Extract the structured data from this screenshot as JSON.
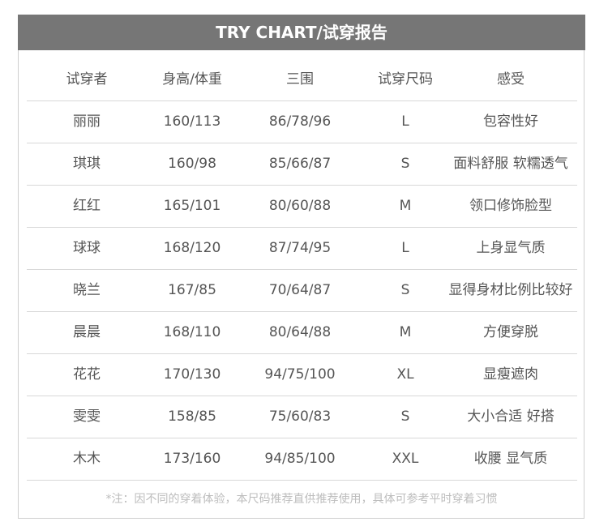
{
  "title": "TRY CHART/试穿报告",
  "columns": [
    "试穿者",
    "身高/体重",
    "三围",
    "试穿尺码",
    "感受"
  ],
  "rows": [
    [
      "丽丽",
      "160/113",
      "86/78/96",
      "L",
      "包容性好"
    ],
    [
      "琪琪",
      "160/98",
      "85/66/87",
      "S",
      "面料舒服 软糯透气"
    ],
    [
      "红红",
      "165/101",
      "80/60/88",
      "M",
      "领口修饰脸型"
    ],
    [
      "球球",
      "168/120",
      "87/74/95",
      "L",
      "上身显气质"
    ],
    [
      "晓兰",
      "167/85",
      "70/64/87",
      "S",
      "显得身材比例比较好"
    ],
    [
      "晨晨",
      "168/110",
      "80/64/88",
      "M",
      "方便穿脱"
    ],
    [
      "花花",
      "170/130",
      "94/75/100",
      "XL",
      "显瘦遮肉"
    ],
    [
      "雯雯",
      "158/85",
      "75/60/83",
      "S",
      "大小合适 好搭"
    ],
    [
      "木木",
      "173/160",
      "94/85/100",
      "XXL",
      "收腰 显气质"
    ]
  ],
  "note": "*注：因不同的穿着体验，本尺码推荐直供推荐使用，具体可参考平时穿着习惯",
  "colors": {
    "header_bg": "#767676",
    "text": "#555555",
    "note": "#bdbdbd"
  }
}
